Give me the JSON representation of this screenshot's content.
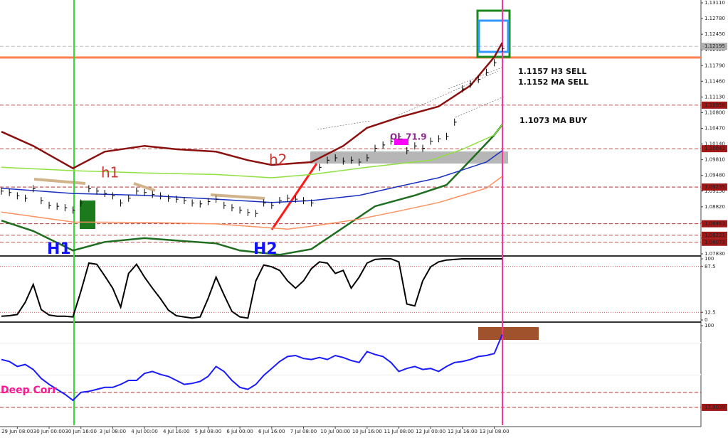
{
  "chart_data": [
    {
      "type": "bar",
      "xlim": [
        0,
        88
      ],
      "ylim": [
        1.0783,
        1.1311
      ],
      "x": [
        0,
        1,
        2,
        3,
        4,
        5,
        6,
        7,
        8,
        9,
        10,
        11,
        12,
        13,
        14,
        15,
        16,
        17,
        18,
        19,
        20,
        21,
        22,
        23,
        24,
        25,
        26,
        27,
        28,
        29,
        30,
        31,
        32,
        33,
        34,
        35,
        36,
        37,
        38,
        39,
        40,
        41,
        42,
        43,
        44,
        45,
        46,
        47,
        48,
        49,
        50,
        51,
        52,
        53,
        54,
        55,
        56,
        57,
        58,
        59,
        60,
        61,
        62,
        63
      ],
      "values": [
        1.0915,
        1.0912,
        1.0905,
        1.09,
        1.092,
        1.0895,
        1.0885,
        1.0883,
        1.088,
        1.0875,
        1.089,
        1.092,
        1.0915,
        1.091,
        1.0905,
        1.089,
        1.09,
        1.0915,
        1.0912,
        1.0908,
        1.0905,
        1.09,
        1.0898,
        1.0895,
        1.089,
        1.0888,
        1.0893,
        1.0898,
        1.0885,
        1.088,
        1.0875,
        1.087,
        1.0868,
        1.089,
        1.0885,
        1.0895,
        1.09,
        1.0898,
        1.0895,
        1.089,
        1.0965,
        1.098,
        1.0985,
        1.0978,
        1.098,
        1.0976,
        1.0985,
        1.1005,
        1.1012,
        1.102,
        1.103,
        1.1,
        1.101,
        1.1005,
        1.102,
        1.1025,
        1.103,
        1.106,
        1.113,
        1.114,
        1.115,
        1.1165,
        1.1185,
        1.1215
      ],
      "color": "#000000",
      "series": [
        {
          "color": "#8b1010",
          "x": [
            0,
            4,
            9,
            13,
            18,
            22,
            27,
            31,
            34,
            39,
            43,
            46,
            50,
            55,
            59,
            62,
            63
          ],
          "values": [
            1.104,
            1.101,
            1.0963,
            1.0998,
            1.101,
            1.1003,
            1.0998,
            1.098,
            1.097,
            1.0976,
            1.101,
            1.1048,
            1.107,
            1.1093,
            1.1137,
            1.1197,
            1.1227
          ]
        },
        {
          "color": "#1f6e1f",
          "x": [
            0,
            4,
            9,
            13,
            18,
            22,
            27,
            30,
            35,
            39,
            43,
            47,
            52,
            56,
            59,
            62,
            63
          ],
          "values": [
            1.0853,
            1.0831,
            1.079,
            1.0808,
            1.0816,
            1.0811,
            1.0805,
            1.079,
            1.0781,
            1.0793,
            1.0838,
            1.0883,
            1.0906,
            1.0928,
            1.098,
            1.1033,
            1.1055
          ]
        },
        {
          "color": "#1a2fc0",
          "x": [
            0,
            9,
            18,
            27,
            34,
            39,
            45,
            50,
            55,
            61,
            63
          ],
          "values": [
            1.0921,
            1.091,
            1.0906,
            1.0898,
            1.0891,
            1.0895,
            1.0906,
            1.0925,
            1.0943,
            1.0976,
            1.1
          ]
        },
        {
          "color": "#90e040",
          "x": [
            0,
            9,
            18,
            27,
            34,
            39,
            46,
            54,
            58,
            62,
            63
          ],
          "values": [
            1.0965,
            1.0958,
            1.0953,
            1.095,
            1.0943,
            1.095,
            1.0965,
            1.098,
            1.1003,
            1.1033,
            1.1055
          ]
        },
        {
          "color": "#ff9060",
          "x": [
            0,
            9,
            18,
            27,
            36,
            39,
            45,
            50,
            55,
            61,
            63
          ],
          "values": [
            1.0871,
            1.085,
            1.0849,
            1.0846,
            1.0835,
            1.0841,
            1.0856,
            1.0873,
            1.0891,
            1.0921,
            1.0946
          ]
        }
      ],
      "levels": [
        {
          "value": 1.1196,
          "color": "#ff7f50"
        },
        {
          "value": 1.12195,
          "label": "1.12195",
          "color": "#b0b0b0"
        },
        {
          "value": 1.10958,
          "label": "1.10958",
          "color": "#a01818"
        },
        {
          "value": 1.10042,
          "label": "1.10042",
          "color": "#a01818"
        },
        {
          "value": 1.09235,
          "label": "1.09235",
          "color": "#a01818"
        },
        {
          "value": 1.08463,
          "label": "1.08463",
          "color": "#a01818"
        },
        {
          "value": 1.08221,
          "label": "1.08221",
          "color": "#a01818"
        },
        {
          "value": 1.08073,
          "label": "1.08073",
          "color": "#a01818"
        }
      ],
      "yticks": [
        {
          "value": 1.1311,
          "label": "1.13110"
        },
        {
          "value": 1.1278,
          "label": "1.12780"
        },
        {
          "value": 1.1245,
          "label": "1.12450"
        },
        {
          "value": 1.1212,
          "label": "1.12120"
        },
        {
          "value": 1.1179,
          "label": "1.11790"
        },
        {
          "value": 1.1146,
          "label": "1.11460"
        },
        {
          "value": 1.1113,
          "label": "1.11130"
        },
        {
          "value": 1.108,
          "label": "1.10800"
        },
        {
          "value": 1.1047,
          "label": "1.10470"
        },
        {
          "value": 1.1014,
          "label": "1.10140"
        },
        {
          "value": 1.0981,
          "label": "1.09810"
        },
        {
          "value": 1.0948,
          "label": "1.09480"
        },
        {
          "value": 1.0915,
          "label": "1.09150"
        },
        {
          "value": 1.0882,
          "label": "1.08820"
        },
        {
          "value": 1.0849,
          "label": "1.08490"
        },
        {
          "value": 1.0816,
          "label": "1.08160"
        },
        {
          "value": 1.0783,
          "label": "1.07830"
        }
      ],
      "xticks": [
        {
          "value": 2,
          "label": "29 Jun 08:00"
        },
        {
          "value": 6,
          "label": "30 Jun 00:00"
        },
        {
          "value": 10,
          "label": "30 Jun 16:00"
        },
        {
          "value": 14,
          "label": "3 Jul 08:00"
        },
        {
          "value": 18,
          "label": "4 Jul 00:00"
        },
        {
          "value": 22,
          "label": "4 Jul 16:00"
        },
        {
          "value": 26,
          "label": "5 Jul 08:00"
        },
        {
          "value": 30,
          "label": "6 Jul 00:00"
        },
        {
          "value": 34,
          "label": "6 Jul 16:00"
        },
        {
          "value": 38,
          "label": "7 Jul 08:00"
        },
        {
          "value": 42,
          "label": "10 Jul 00:00"
        },
        {
          "value": 46,
          "label": "10 Jul 16:00"
        },
        {
          "value": 50,
          "label": "11 Jul 08:00"
        },
        {
          "value": 54,
          "label": "12 Jul 00:00"
        },
        {
          "value": 58,
          "label": "12 Jul 16:00"
        },
        {
          "value": 62,
          "label": "13 Jul 08:00"
        }
      ],
      "annotations": [
        "h1",
        "h2",
        "H1",
        "H2",
        "1.1157 H3 SELL",
        "1.1152 MA SELL",
        "1.1073 MA BUY",
        "OL 71.9"
      ]
    },
    {
      "type": "line",
      "xlim": [
        0,
        88
      ],
      "ylim": [
        0,
        100
      ],
      "color": "#000000",
      "x": [
        0,
        1,
        2,
        3,
        4,
        5,
        6,
        7,
        8,
        9,
        10,
        11,
        12,
        13,
        14,
        15,
        16,
        17,
        18,
        19,
        20,
        21,
        22,
        23,
        24,
        25,
        26,
        27,
        28,
        29,
        30,
        31,
        32,
        33,
        34,
        35,
        36,
        37,
        38,
        39,
        40,
        41,
        42,
        43,
        44,
        45,
        46,
        47,
        48,
        49,
        50,
        51,
        52,
        53,
        54,
        55,
        56,
        57,
        58,
        59,
        60,
        61,
        62,
        63
      ],
      "values": [
        6,
        7,
        9,
        29,
        58,
        17,
        8,
        6,
        6,
        5,
        47,
        93,
        91,
        72,
        52,
        21,
        76,
        91,
        70,
        52,
        35,
        16,
        7,
        5,
        3,
        5,
        35,
        70,
        41,
        14,
        5,
        3,
        64,
        90,
        87,
        81,
        64,
        52,
        64,
        84,
        95,
        93,
        76,
        81,
        52,
        70,
        93,
        99,
        100,
        100,
        95,
        26,
        23,
        64,
        87,
        95,
        98,
        99,
        100,
        100,
        100,
        100,
        100,
        100
      ],
      "yticks": [
        100,
        87.5,
        12.5,
        0
      ],
      "levels": [
        87.5,
        12.5
      ]
    },
    {
      "type": "line",
      "xlim": [
        0,
        88
      ],
      "ylim": [
        0,
        100
      ],
      "color": "#1a1aff",
      "x": [
        0,
        1,
        2,
        3,
        4,
        5,
        6,
        7,
        8,
        9,
        10,
        11,
        12,
        13,
        14,
        15,
        16,
        17,
        18,
        19,
        20,
        21,
        22,
        23,
        24,
        25,
        26,
        27,
        28,
        29,
        30,
        31,
        32,
        33,
        34,
        35,
        36,
        37,
        38,
        39,
        40,
        41,
        42,
        43,
        44,
        45,
        46,
        47,
        48,
        49,
        50,
        51,
        52,
        53,
        54,
        55,
        56,
        57,
        58,
        59,
        60,
        61,
        62,
        63
      ],
      "values": [
        66,
        64,
        59,
        61,
        56,
        47,
        41,
        36,
        31,
        25,
        33,
        34,
        36,
        38,
        38,
        41,
        45,
        45,
        52,
        54,
        51,
        49,
        45,
        41,
        42,
        44,
        49,
        59,
        54,
        45,
        38,
        36,
        41,
        50,
        57,
        64,
        69,
        70,
        67,
        66,
        68,
        66,
        70,
        68,
        65,
        63,
        74,
        71,
        69,
        63,
        54,
        57,
        59,
        56,
        57,
        54,
        59,
        63,
        64,
        66,
        69,
        70,
        72,
        91
      ],
      "yticks": [
        100
      ],
      "levels": [
        {
          "value": 83,
          "color": "#ffffff"
        },
        {
          "value": 51,
          "color": "#ffffff"
        },
        {
          "value": 33,
          "color": "#a01818"
        },
        {
          "value": 17.9039,
          "label": "17.9039",
          "color": "#a01818"
        }
      ],
      "annotations": [
        "Deep Corr"
      ]
    }
  ]
}
